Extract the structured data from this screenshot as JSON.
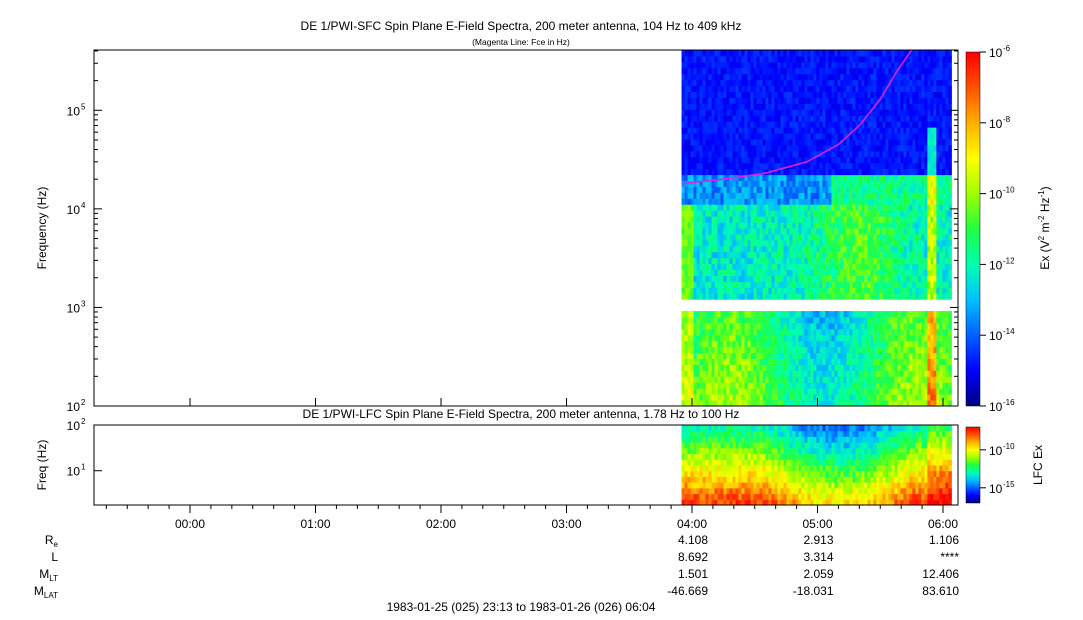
{
  "colors": {
    "fce_line": "#e020e0",
    "colormap": [
      "#00007f",
      "#0000ff",
      "#0060ff",
      "#00c0ff",
      "#00ffb0",
      "#20ff40",
      "#a0ff00",
      "#ffff00",
      "#ffb000",
      "#ff5000",
      "#ff0000"
    ]
  },
  "chart_data": [
    {
      "type": "heatmap",
      "title": "DE 1/PWI-SFC  Spin Plane E-Field Spectra, 200 meter antenna, 104 Hz to 409 kHz",
      "subtitle": "(Magenta Line: Fce in Hz)",
      "xlabel": "",
      "ylabel": "Frequency (Hz)",
      "y_scale": "log",
      "ylim": [
        100,
        409000
      ],
      "y_ticks": [
        {
          "value": 100,
          "label": "10",
          "sup": "2"
        },
        {
          "value": 1000,
          "label": "10",
          "sup": "3"
        },
        {
          "value": 10000,
          "label": "10",
          "sup": "4"
        },
        {
          "value": 100000,
          "label": "10",
          "sup": "5"
        }
      ],
      "data_start": "03:55",
      "data_end": "06:04",
      "colorbar": {
        "label_pre": "Ex (V",
        "label_sup1": "2",
        "label_mid": " m",
        "label_sup2": "-2",
        "label_mid2": " Hz",
        "label_sup3": "-1",
        "label_post": ")",
        "scale": "log",
        "range": [
          1e-16,
          1e-06
        ],
        "ticks": [
          {
            "value": -6,
            "label": "10",
            "sup": "-6"
          },
          {
            "value": -8,
            "label": "10",
            "sup": "-8"
          },
          {
            "value": -10,
            "label": "10",
            "sup": "-10"
          },
          {
            "value": -12,
            "label": "10",
            "sup": "-12"
          },
          {
            "value": -14,
            "label": "10",
            "sup": "-14"
          },
          {
            "value": -16,
            "label": "10",
            "sup": "-16"
          }
        ]
      },
      "fce_line": {
        "name": "Fce",
        "x": [
          "03:55",
          "04:15",
          "04:35",
          "04:55",
          "05:10",
          "05:20",
          "05:30",
          "05:38",
          "05:45"
        ],
        "y": [
          18000,
          20000,
          23000,
          30000,
          45000,
          70000,
          130000,
          250000,
          409000
        ]
      }
    },
    {
      "type": "heatmap",
      "title": "DE 1/PWI-LFC  Spin Plane E-Field Spectra, 200 meter antenna, 1.78 Hz to 100 Hz",
      "ylabel": "Freq (Hz)",
      "y_scale": "log",
      "ylim": [
        1.78,
        100
      ],
      "y_ticks": [
        {
          "value": 10,
          "label": "10",
          "sup": "1"
        },
        {
          "value": 100,
          "label": "10",
          "sup": "2"
        }
      ],
      "colorbar": {
        "label": "LFC Ex",
        "scale": "log",
        "range": [
          1e-17,
          1e-07
        ],
        "ticks": [
          {
            "value": -10,
            "label": "10",
            "sup": "-10"
          },
          {
            "value": -15,
            "label": "10",
            "sup": "-15"
          }
        ]
      }
    }
  ],
  "time_axis": {
    "ticks": [
      "00:00",
      "01:00",
      "02:00",
      "03:00",
      "04:00",
      "05:00",
      "06:00"
    ],
    "start": "23:13",
    "end": "06:04"
  },
  "ephemeris": {
    "rows": [
      {
        "name": "R",
        "sub": "e",
        "values": [
          "4.108",
          "2.913",
          "1.106"
        ]
      },
      {
        "name": "L",
        "sub": "",
        "values": [
          "8.692",
          "3.314",
          "****"
        ]
      },
      {
        "name": "M",
        "sub": "LT",
        "values": [
          "1.501",
          "2.059",
          "12.406"
        ]
      },
      {
        "name": "M",
        "sub": "LAT",
        "values": [
          "-46.669",
          "-18.031",
          "83.610"
        ]
      }
    ],
    "value_times": [
      "04:00",
      "05:00",
      "06:00"
    ]
  },
  "footer": "1983-01-25 (025) 23:13 to 1983-01-26 (026) 06:04"
}
